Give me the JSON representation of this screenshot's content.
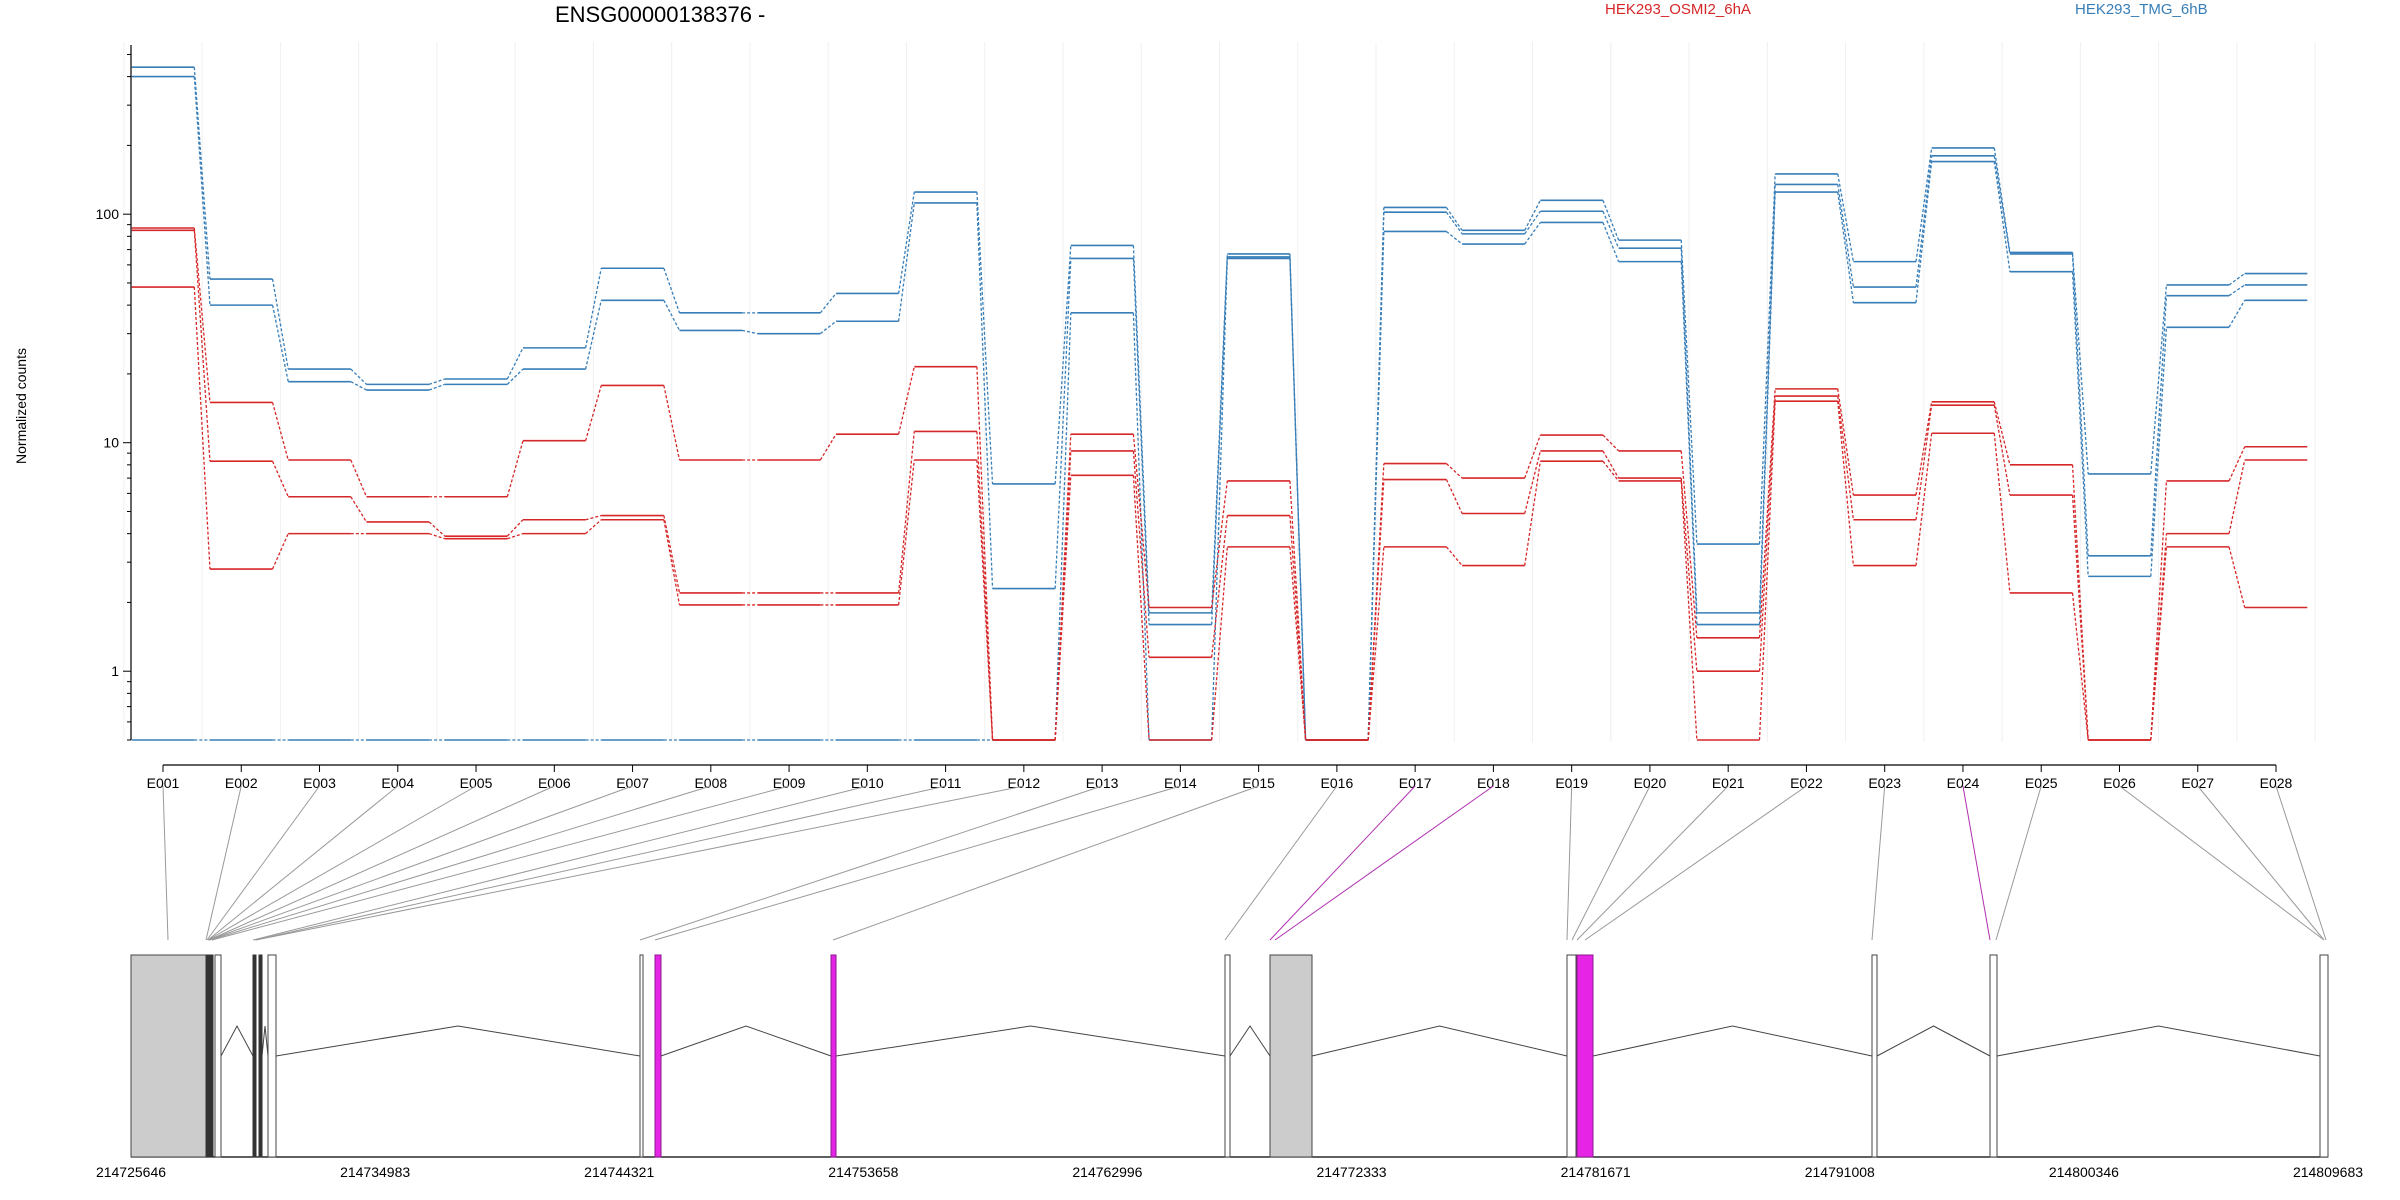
{
  "chart_data": {
    "type": "line",
    "title": "ENSG00000138376 -",
    "ylabel": "Normalized counts",
    "y_scale": "log",
    "yticks": [
      1,
      10,
      100
    ],
    "ylim": [
      0.5,
      550
    ],
    "categories": [
      "E001",
      "E002",
      "E003",
      "E004",
      "E005",
      "E006",
      "E007",
      "E008",
      "E009",
      "E010",
      "E011",
      "E012",
      "E013",
      "E014",
      "E015",
      "E016",
      "E017",
      "E018",
      "E019",
      "E020",
      "E021",
      "E022",
      "E023",
      "E024",
      "E025",
      "E026",
      "E027",
      "E028"
    ],
    "legend": [
      {
        "label": "HEK293_OSMI2_6hA",
        "color": "#d62728"
      },
      {
        "label": "HEK293_TMG_6hB",
        "color": "#377eb8"
      }
    ],
    "series": [
      {
        "group": "HEK293_TMG_6hB",
        "color": "#377eb8",
        "values": [
          440,
          52,
          21,
          18,
          19,
          26,
          58,
          37,
          37,
          45,
          125,
          6.6,
          73,
          1.8,
          67,
          0.5,
          107,
          85,
          115,
          77,
          3.6,
          150,
          62,
          195,
          68,
          7.3,
          49,
          55
        ]
      },
      {
        "group": "HEK293_TMG_6hB",
        "color": "#377eb8",
        "values": [
          400,
          40,
          18.5,
          17,
          18,
          21,
          42,
          31,
          30,
          34,
          112,
          2.3,
          64,
          1.6,
          65,
          0.5,
          102,
          82,
          103,
          71,
          1.8,
          135,
          48,
          180,
          67,
          3.2,
          44,
          49
        ]
      },
      {
        "group": "HEK293_TMG_6hB",
        "color": "#377eb8",
        "values": [
          0.5,
          0.5,
          0.5,
          0.5,
          0.5,
          0.5,
          0.5,
          0.5,
          0.5,
          0.5,
          0.5,
          0.5,
          37,
          0.5,
          64,
          0.5,
          84,
          74,
          92,
          62,
          1.6,
          125,
          41,
          170,
          56,
          2.6,
          32,
          42
        ]
      },
      {
        "group": "HEK293_OSMI2_6hA",
        "color": "#d62728",
        "values": [
          87,
          15,
          8.4,
          5.8,
          5.8,
          10.2,
          17.8,
          8.4,
          8.4,
          10.9,
          21.5,
          0.5,
          10.9,
          1.9,
          6.8,
          0.5,
          8.1,
          7.0,
          10.8,
          9.2,
          1.4,
          17.2,
          5.9,
          15.1,
          8.0,
          0.5,
          6.8,
          9.6
        ]
      },
      {
        "group": "HEK293_OSMI2_6hA",
        "color": "#d62728",
        "values": [
          85,
          8.3,
          5.8,
          4.5,
          3.9,
          4.6,
          4.8,
          2.2,
          2.2,
          2.2,
          11.2,
          0.5,
          9.2,
          1.15,
          4.8,
          0.5,
          6.9,
          4.9,
          9.2,
          7.0,
          1.0,
          16.0,
          4.6,
          14.6,
          5.9,
          0.5,
          4.0,
          8.4
        ]
      },
      {
        "group": "HEK293_OSMI2_6hA",
        "color": "#d62728",
        "values": [
          48,
          2.8,
          4.0,
          4.0,
          3.8,
          4.0,
          4.6,
          1.95,
          1.95,
          1.95,
          8.4,
          0.5,
          7.2,
          0.5,
          3.5,
          0.5,
          3.5,
          2.9,
          8.3,
          6.8,
          0.5,
          15.2,
          2.9,
          11.0,
          2.2,
          0.5,
          3.5,
          1.9
        ]
      }
    ],
    "gene_model": {
      "coordinate_ticks": [
        "214725646",
        "214734983",
        "214744321",
        "214753658",
        "214762996",
        "214772333",
        "214781671",
        "214791008",
        "214800346",
        "214809683"
      ],
      "highlighted_exons": [
        "E017",
        "E018",
        "E024"
      ],
      "highlight_color": "#e624e6",
      "exon_color": "#cccccc"
    }
  }
}
